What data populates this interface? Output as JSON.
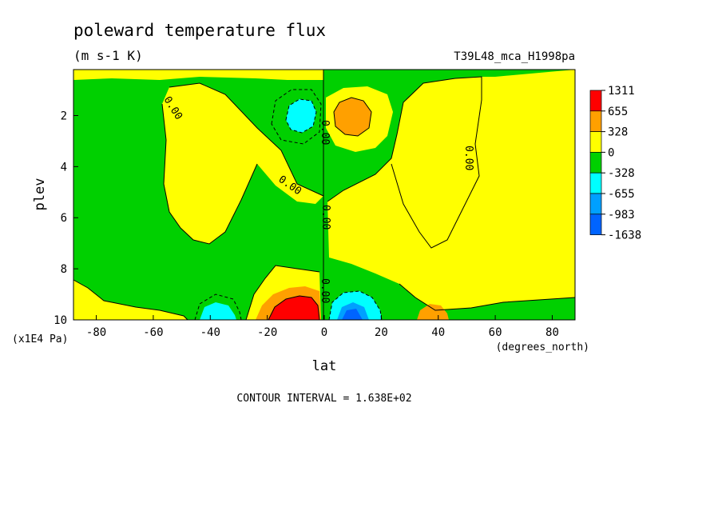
{
  "chart_data": {
    "type": "heatmap",
    "title": "poleward temperature flux",
    "units": "(m s-1 K)",
    "run_label": "T39L48_mca_H1998pa",
    "xlabel": "lat",
    "x_units": "(degrees_north)",
    "ylabel": "plev",
    "y_units": "(x1E4 Pa)",
    "x_ticks": [
      "-80",
      "-60",
      "-40",
      "-20",
      "0",
      "20",
      "40",
      "60",
      "80"
    ],
    "y_ticks": [
      "2",
      "4",
      "6",
      "8",
      "10"
    ],
    "xlim": [
      -88,
      88
    ],
    "ylim": [
      10,
      0.2
    ],
    "y_inverted": true,
    "contour_interval_text": "CONTOUR INTERVAL = 1.638E+02",
    "zero_contour_label": "0.00",
    "legend": {
      "placement": "right",
      "levels": [
        "1311",
        "655",
        "328",
        "0",
        "-328",
        "-655",
        "-983",
        "-1638"
      ],
      "colors": [
        "#ff0000",
        "#ffa000",
        "#ffff00",
        "#00d000",
        "#00ffff",
        "#00a0ff",
        "#0064ff"
      ]
    },
    "features": [
      {
        "lat": -8,
        "plev": 9.5,
        "value": 1311,
        "class": "max"
      },
      {
        "lat": 8,
        "plev": 9.6,
        "value": -983,
        "class": "min"
      },
      {
        "lat": 10,
        "plev": 2.1,
        "value": 655,
        "class": "max"
      },
      {
        "lat": -10,
        "plev": 2.0,
        "value": -655,
        "class": "min"
      },
      {
        "lat": 36,
        "plev": 9.6,
        "value": 328,
        "class": "max"
      },
      {
        "lat": -40,
        "plev": 9.6,
        "value": -655,
        "class": "min"
      }
    ],
    "colors": {
      "red": "#ff0000",
      "orange": "#ffa000",
      "yellow": "#ffff00",
      "green": "#00d000",
      "cyan": "#00ffff",
      "lightblue": "#00a0ff",
      "blue": "#0064ff"
    }
  }
}
